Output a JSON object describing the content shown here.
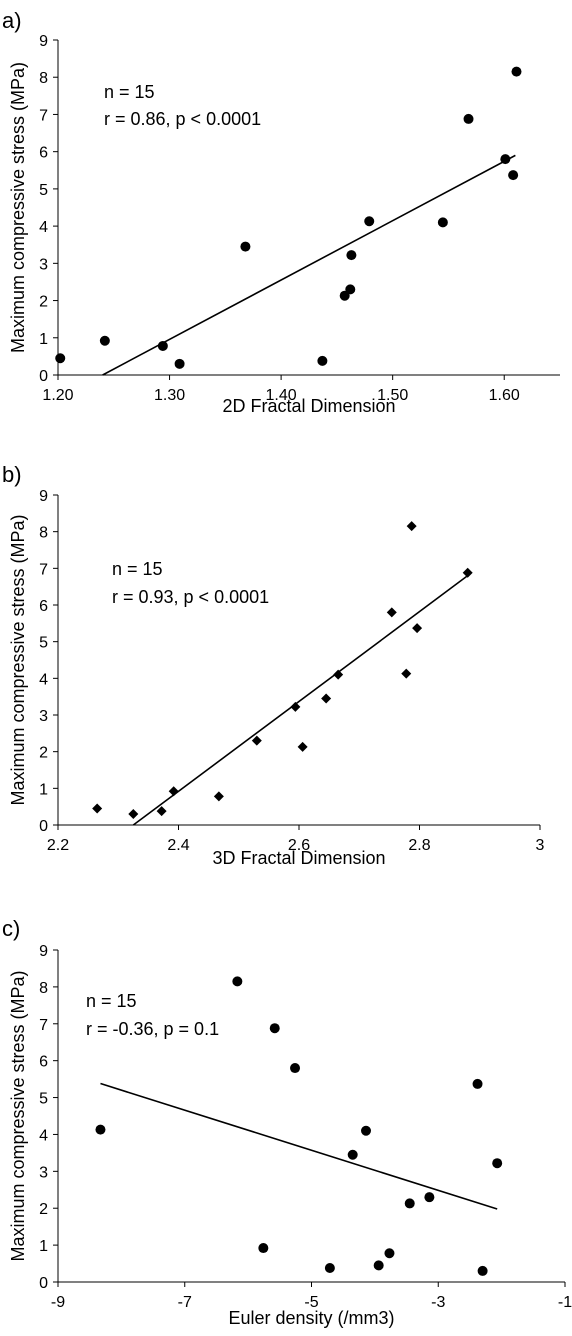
{
  "chart_data": [
    {
      "panel_label": "a)",
      "type": "scatter",
      "marker": "circle",
      "xlabel": "2D Fractal Dimension",
      "ylabel": "Maximum compressive stress (MPa)",
      "xlim": [
        1.2,
        1.65
      ],
      "ylim": [
        0,
        9
      ],
      "x_ticks": [
        "1.20",
        "1.30",
        "1.40",
        "1.50",
        "1.60"
      ],
      "y_ticks": [
        "0",
        "1",
        "2",
        "3",
        "4",
        "5",
        "6",
        "7",
        "8",
        "9"
      ],
      "annotations": [
        "n = 15",
        "r = 0.86, p < 0.0001"
      ],
      "points": [
        {
          "x": 1.202,
          "y": 0.45
        },
        {
          "x": 1.242,
          "y": 0.92
        },
        {
          "x": 1.294,
          "y": 0.78
        },
        {
          "x": 1.309,
          "y": 0.3
        },
        {
          "x": 1.368,
          "y": 3.45
        },
        {
          "x": 1.437,
          "y": 0.38
        },
        {
          "x": 1.457,
          "y": 2.13
        },
        {
          "x": 1.462,
          "y": 2.3
        },
        {
          "x": 1.463,
          "y": 3.22
        },
        {
          "x": 1.479,
          "y": 4.13
        },
        {
          "x": 1.545,
          "y": 4.1
        },
        {
          "x": 1.568,
          "y": 6.88
        },
        {
          "x": 1.601,
          "y": 5.8
        },
        {
          "x": 1.608,
          "y": 5.37
        },
        {
          "x": 1.611,
          "y": 8.15
        }
      ],
      "trendline": [
        [
          1.24,
          0.0
        ],
        [
          1.61,
          5.9
        ]
      ]
    },
    {
      "panel_label": "b)",
      "type": "scatter",
      "marker": "diamond",
      "xlabel": "3D Fractal Dimension",
      "ylabel": "Maximum compressive stress (MPa)",
      "xlim": [
        2.2,
        3.0
      ],
      "ylim": [
        0,
        9
      ],
      "x_ticks": [
        "2.2",
        "2.4",
        "2.6",
        "2.8",
        "3"
      ],
      "y_ticks": [
        "0",
        "1",
        "2",
        "3",
        "4",
        "5",
        "6",
        "7",
        "8",
        "9"
      ],
      "annotations": [
        "n = 15",
        "r = 0.93, p < 0.0001"
      ],
      "points": [
        {
          "x": 2.265,
          "y": 0.45
        },
        {
          "x": 2.325,
          "y": 0.3
        },
        {
          "x": 2.372,
          "y": 0.38
        },
        {
          "x": 2.392,
          "y": 0.92
        },
        {
          "x": 2.467,
          "y": 0.78
        },
        {
          "x": 2.53,
          "y": 2.3
        },
        {
          "x": 2.594,
          "y": 3.22
        },
        {
          "x": 2.606,
          "y": 2.13
        },
        {
          "x": 2.645,
          "y": 3.45
        },
        {
          "x": 2.665,
          "y": 4.1
        },
        {
          "x": 2.754,
          "y": 5.8
        },
        {
          "x": 2.778,
          "y": 4.13
        },
        {
          "x": 2.787,
          "y": 8.15
        },
        {
          "x": 2.796,
          "y": 5.37
        },
        {
          "x": 2.88,
          "y": 6.88
        }
      ],
      "trendline": [
        [
          2.325,
          0.0
        ],
        [
          2.88,
          6.8
        ]
      ]
    },
    {
      "panel_label": "c)",
      "type": "scatter",
      "marker": "circle",
      "xlabel": "Euler density (/mm3)",
      "ylabel": "Maximum compressive stress (MPa)",
      "xlim": [
        -9,
        -1
      ],
      "ylim": [
        0,
        9
      ],
      "x_ticks": [
        "-9",
        "-7",
        "-5",
        "-3",
        "-1"
      ],
      "y_ticks": [
        "0",
        "1",
        "2",
        "3",
        "4",
        "5",
        "6",
        "7",
        "8",
        "9"
      ],
      "annotations": [
        "n = 15",
        "r = -0.36, p = 0.1"
      ],
      "points": [
        {
          "x": -8.33,
          "y": 4.13
        },
        {
          "x": -6.17,
          "y": 8.15
        },
        {
          "x": -5.58,
          "y": 6.88
        },
        {
          "x": -5.26,
          "y": 5.8
        },
        {
          "x": -5.76,
          "y": 0.92
        },
        {
          "x": -4.71,
          "y": 0.38
        },
        {
          "x": -4.35,
          "y": 3.45
        },
        {
          "x": -4.14,
          "y": 4.1
        },
        {
          "x": -3.94,
          "y": 0.45
        },
        {
          "x": -3.77,
          "y": 0.78
        },
        {
          "x": -3.45,
          "y": 2.13
        },
        {
          "x": -3.14,
          "y": 2.3
        },
        {
          "x": -2.38,
          "y": 5.37
        },
        {
          "x": -2.3,
          "y": 0.3
        },
        {
          "x": -2.07,
          "y": 3.22
        }
      ],
      "trendline": [
        [
          -8.33,
          5.38
        ],
        [
          -2.07,
          1.98
        ]
      ]
    }
  ]
}
